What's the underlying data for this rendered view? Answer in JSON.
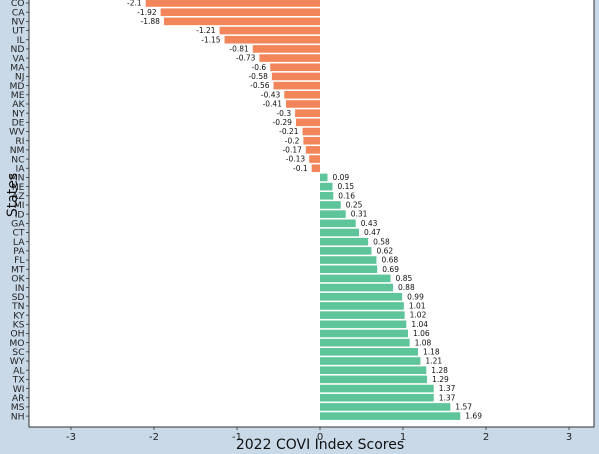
{
  "chart_data": {
    "type": "bar",
    "orientation": "horizontal",
    "xlabel": "2022 COVI Index Scores",
    "ylabel": "States",
    "xlim": [
      -3.5,
      3.2
    ],
    "xticks": [
      -3,
      -2,
      -1,
      0,
      1,
      2,
      3
    ],
    "grid": false,
    "colors": {
      "negative": "#f2855a",
      "positive": "#5ec49a"
    },
    "categories": [
      "CO",
      "CA",
      "NV",
      "UT",
      "IL",
      "ND",
      "VA",
      "MA",
      "NJ",
      "MD",
      "ME",
      "AK",
      "NY",
      "DE",
      "WV",
      "RI",
      "NM",
      "NC",
      "IA",
      "MN",
      "NE",
      "AZ",
      "MI",
      "ID",
      "GA",
      "CT",
      "LA",
      "PA",
      "FL",
      "MT",
      "OK",
      "IN",
      "SD",
      "TN",
      "KY",
      "KS",
      "OH",
      "MO",
      "SC",
      "WY",
      "AL",
      "TX",
      "WI",
      "AR",
      "MS",
      "NH"
    ],
    "values": [
      -2.1,
      -1.92,
      -1.88,
      -1.21,
      -1.15,
      -0.81,
      -0.73,
      -0.6,
      -0.58,
      -0.56,
      -0.43,
      -0.41,
      -0.3,
      -0.29,
      -0.21,
      -0.2,
      -0.17,
      -0.13,
      -0.1,
      0.09,
      0.15,
      0.16,
      0.25,
      0.31,
      0.43,
      0.47,
      0.58,
      0.62,
      0.68,
      0.69,
      0.85,
      0.88,
      0.99,
      1.01,
      1.02,
      1.04,
      1.06,
      1.08,
      1.18,
      1.21,
      1.28,
      1.29,
      1.37,
      1.37,
      1.57,
      1.69
    ],
    "value_labels": [
      "-2.1",
      "-1.92",
      "-1.88",
      "-1.21",
      "-1.15",
      "-0.81",
      "-0.73",
      "-0.6",
      "-0.58",
      "-0.56",
      "-0.43",
      "-0.41",
      "-0.3",
      "-0.29",
      "-0.21",
      "-0.2",
      "-0.17",
      "-0.13",
      "-0.1",
      "0.09",
      "0.15",
      "0.16",
      "0.25",
      "0.31",
      "0.43",
      "0.47",
      "0.58",
      "0.62",
      "0.68",
      "0.69",
      "0.85",
      "0.88",
      "0.99",
      "1.01",
      "1.02",
      "1.04",
      "1.06",
      "1.08",
      "1.18",
      "1.21",
      "1.28",
      "1.29",
      "1.37",
      "1.37",
      "1.57",
      "1.69"
    ]
  }
}
